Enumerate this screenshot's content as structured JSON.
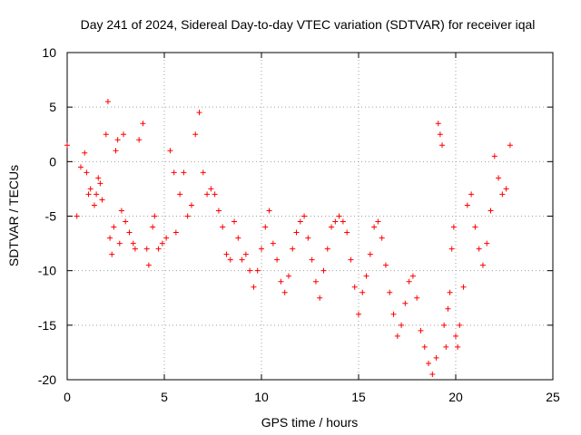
{
  "chart_data": {
    "type": "scatter",
    "title": "Day 241 of 2024, Sidereal Day-to-day VTEC variation (SDTVAR) for receiver iqal",
    "xlabel": "GPS time / hours",
    "ylabel": "SDTVAR / TECUs",
    "xlim": [
      0,
      25
    ],
    "ylim": [
      -20,
      10
    ],
    "xticks": [
      0,
      5,
      10,
      15,
      20,
      25
    ],
    "yticks": [
      -20,
      -15,
      -10,
      -5,
      0,
      5,
      10
    ],
    "grid": true,
    "marker": "+",
    "color": "#ff0000",
    "series": [
      {
        "name": "SDTVAR",
        "x": [
          0.0,
          0.5,
          0.7,
          0.9,
          1.0,
          1.1,
          1.2,
          1.4,
          1.5,
          1.6,
          1.7,
          1.8,
          2.0,
          2.1,
          2.2,
          2.3,
          2.4,
          2.5,
          2.6,
          2.7,
          2.8,
          2.9,
          3.0,
          3.2,
          3.4,
          3.5,
          3.7,
          3.9,
          4.1,
          4.2,
          4.4,
          4.5,
          4.7,
          4.9,
          5.1,
          5.3,
          5.5,
          5.6,
          5.8,
          6.0,
          6.2,
          6.4,
          6.6,
          6.8,
          7.0,
          7.2,
          7.4,
          7.6,
          7.8,
          8.0,
          8.2,
          8.4,
          8.6,
          8.8,
          9.0,
          9.2,
          9.4,
          9.6,
          9.8,
          10.0,
          10.2,
          10.4,
          10.6,
          10.8,
          11.0,
          11.2,
          11.4,
          11.6,
          11.8,
          12.0,
          12.2,
          12.4,
          12.6,
          12.8,
          13.0,
          13.2,
          13.4,
          13.6,
          13.8,
          14.0,
          14.2,
          14.4,
          14.6,
          14.8,
          15.0,
          15.2,
          15.4,
          15.6,
          15.8,
          16.0,
          16.2,
          16.4,
          16.6,
          16.8,
          17.0,
          17.2,
          17.4,
          17.6,
          17.8,
          18.0,
          18.2,
          18.4,
          18.6,
          18.8,
          19.0,
          19.1,
          19.2,
          19.3,
          19.4,
          19.5,
          19.6,
          19.7,
          19.8,
          19.9,
          20.0,
          20.1,
          20.2,
          20.4,
          20.6,
          20.8,
          21.0,
          21.2,
          21.4,
          21.6,
          21.8,
          22.0,
          22.2,
          22.4,
          22.6,
          22.8
        ],
        "y": [
          1.5,
          -5.0,
          -0.5,
          0.8,
          -1.0,
          -3.0,
          -2.5,
          -4.0,
          -3.0,
          -1.5,
          -2.0,
          -3.5,
          2.5,
          5.5,
          -7.0,
          -8.5,
          -6.0,
          1.0,
          2.0,
          -7.5,
          -4.5,
          2.5,
          -5.5,
          -6.5,
          -7.5,
          -8.0,
          2.0,
          3.5,
          -8.0,
          -9.5,
          -6.0,
          -5.0,
          -8.0,
          -7.5,
          -7.0,
          1.0,
          -1.0,
          -6.5,
          -3.0,
          -1.0,
          -5.0,
          -4.0,
          2.5,
          4.5,
          -1.0,
          -3.0,
          -2.5,
          -3.0,
          -4.5,
          -6.0,
          -8.5,
          -9.0,
          -5.5,
          -7.0,
          -9.0,
          -8.5,
          -10.0,
          -11.5,
          -10.0,
          -8.0,
          -6.0,
          -4.5,
          -7.5,
          -9.0,
          -11.0,
          -12.0,
          -10.5,
          -8.0,
          -6.5,
          -5.5,
          -5.0,
          -7.0,
          -9.0,
          -11.0,
          -12.5,
          -10.0,
          -8.0,
          -6.0,
          -5.5,
          -5.0,
          -5.5,
          -6.5,
          -9.0,
          -11.5,
          -14.0,
          -12.0,
          -10.5,
          -8.5,
          -6.0,
          -5.5,
          -7.0,
          -9.5,
          -12.0,
          -14.0,
          -16.0,
          -15.0,
          -13.0,
          -11.0,
          -10.5,
          -12.5,
          -15.5,
          -17.0,
          -18.5,
          -19.5,
          -18.0,
          3.5,
          2.5,
          1.5,
          -15.0,
          -17.0,
          -13.5,
          -12.0,
          -8.0,
          -6.0,
          -16.0,
          -17.0,
          -15.0,
          -11.5,
          -4.0,
          -3.0,
          -6.0,
          -8.0,
          -9.5,
          -7.5,
          -4.5,
          0.5,
          -1.5,
          -3.0,
          -2.5,
          1.5
        ]
      }
    ]
  }
}
